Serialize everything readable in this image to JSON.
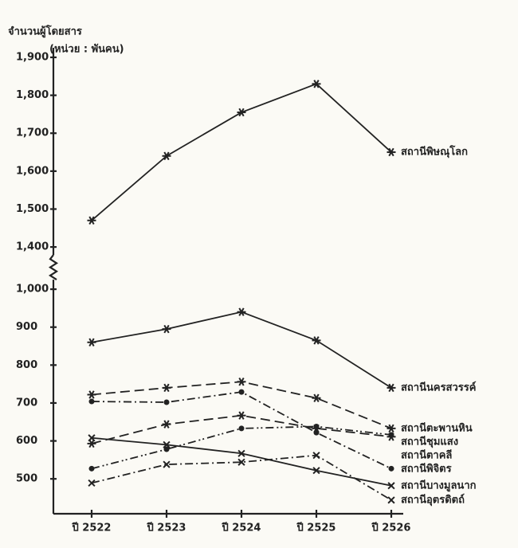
{
  "chart_data": {
    "type": "line",
    "y_label": "จำนวนผู้โดยสาร",
    "y_unit": "(หน่วย : พันคน)",
    "categories": [
      "ปี 2522",
      "ปี 2523",
      "ปี 2524",
      "ปี 2525",
      "ปี 2526"
    ],
    "ylim": [
      450,
      1900
    ],
    "y_break": [
      1000,
      1400
    ],
    "yticks": [
      500,
      600,
      700,
      800,
      900,
      {
        "value": 1000,
        "label": "1,000"
      },
      {
        "value": 1400,
        "label": "1,400"
      },
      {
        "value": 1500,
        "label": "1,500"
      },
      {
        "value": 1600,
        "label": "1,600"
      },
      {
        "value": 1700,
        "label": "1,700"
      },
      {
        "value": 1800,
        "label": "1,800"
      },
      {
        "value": 1900,
        "label": "1,900"
      }
    ],
    "series": [
      {
        "name": "สถานีพิษณุโลก",
        "color": "#222222",
        "line_style": "solid",
        "marker": "star",
        "values": [
          1470,
          1640,
          1755,
          1830,
          1650
        ]
      },
      {
        "name": "สถานีนครสวรรค์",
        "color": "#222222",
        "line_style": "solid",
        "marker": "star",
        "values": [
          860,
          895,
          940,
          865,
          740
        ]
      },
      {
        "name": "สถานีตะพานหิน",
        "color": "#222222",
        "line_style": "dashed",
        "marker": "star",
        "values": [
          722,
          740,
          756,
          713,
          633
        ]
      },
      {
        "name": "สถานีชุมแสง",
        "color": "#222222",
        "line_style": "dashdotdot",
        "marker": "dot",
        "values": [
          527,
          578,
          633,
          638,
          616
        ]
      },
      {
        "name": "สถานีตาคลี",
        "color": "#222222",
        "line_style": "dashed",
        "marker": "star",
        "values": [
          593,
          644,
          667,
          633,
          611
        ]
      },
      {
        "name": "สถานีพิจิตร",
        "color": "#222222",
        "line_style": "dashdot",
        "marker": "dot",
        "values": [
          704,
          702,
          729,
          622,
          527
        ]
      },
      {
        "name": "สถานีบางมูลนาก",
        "color": "#222222",
        "line_style": "solid",
        "marker": "x",
        "values": [
          608,
          590,
          567,
          522,
          482
        ]
      },
      {
        "name": "สถานีอุตรดิตถ์",
        "color": "#222222",
        "line_style": "dashdot",
        "marker": "x",
        "values": [
          489,
          538,
          544,
          562,
          444
        ]
      }
    ]
  }
}
